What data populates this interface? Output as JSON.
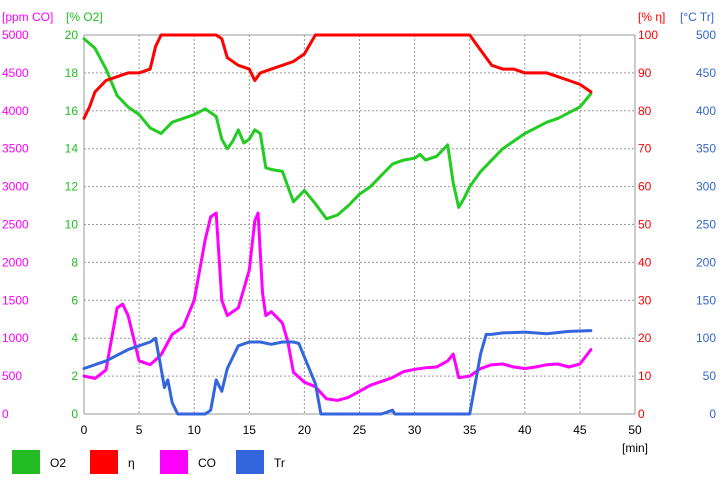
{
  "chart_data": {
    "type": "line",
    "x_axis": {
      "label": "[min]",
      "min": 0,
      "max": 50,
      "ticks": [
        0,
        5,
        10,
        15,
        20,
        25,
        30,
        35,
        40,
        45,
        50
      ]
    },
    "axes": [
      {
        "id": "co",
        "unit": "[ppm CO]",
        "color": "#ff00ff",
        "side": "left",
        "min": 0,
        "max": 5000,
        "ticks": [
          0,
          500,
          1000,
          1500,
          2000,
          2500,
          3000,
          3500,
          4000,
          4500,
          5000
        ]
      },
      {
        "id": "o2",
        "unit": "[% O2]",
        "color": "#22bb22",
        "side": "left",
        "min": 0,
        "max": 20,
        "ticks": [
          0,
          2,
          4,
          6,
          8,
          10,
          12,
          14,
          16,
          18,
          20
        ]
      },
      {
        "id": "eta",
        "unit": "[% η]",
        "color": "#ff0000",
        "side": "right",
        "min": 0,
        "max": 100,
        "ticks": [
          0,
          10,
          20,
          30,
          40,
          50,
          60,
          70,
          80,
          90,
          100
        ]
      },
      {
        "id": "tr",
        "unit": "[°C Tr]",
        "color": "#3366cc",
        "side": "right",
        "min": 0,
        "max": 500,
        "ticks": [
          0,
          50,
          100,
          150,
          200,
          250,
          300,
          350,
          400,
          450,
          500
        ]
      }
    ],
    "grid": true,
    "legend_position": "bottom",
    "series": [
      {
        "name": "O2",
        "axis": "o2",
        "color": "#22cc22",
        "x": [
          0,
          1,
          2,
          3,
          4,
          5,
          6,
          7,
          8,
          9,
          10,
          11,
          12,
          12.5,
          13,
          13.5,
          14,
          14.5,
          15,
          15.5,
          16,
          16.5,
          17,
          18,
          19,
          19.5,
          20,
          21,
          22,
          23,
          24,
          25,
          26,
          27,
          28,
          29,
          30,
          30.5,
          31,
          32,
          33,
          33.5,
          34,
          34.5,
          35,
          36,
          37,
          38,
          39,
          40,
          41,
          42,
          43,
          44,
          45,
          46
        ],
        "y": [
          19.8,
          19.3,
          18.2,
          16.8,
          16.2,
          15.8,
          15.1,
          14.8,
          15.4,
          15.6,
          15.8,
          16.1,
          15.7,
          14.5,
          14,
          14.4,
          15,
          14.3,
          14.5,
          15,
          14.8,
          13,
          12.9,
          12.8,
          11.2,
          11.5,
          11.8,
          11.1,
          10.3,
          10.5,
          11,
          11.6,
          12,
          12.6,
          13.2,
          13.4,
          13.5,
          13.7,
          13.4,
          13.6,
          14.2,
          12.2,
          10.9,
          11.4,
          12,
          12.8,
          13.4,
          14,
          14.4,
          14.8,
          15.1,
          15.4,
          15.6,
          15.9,
          16.2,
          16.9
        ]
      },
      {
        "name": "η",
        "axis": "eta",
        "color": "#ff0000",
        "x": [
          0,
          0.5,
          1,
          2,
          3,
          4,
          5,
          6,
          6.5,
          7,
          12,
          12.5,
          13,
          14,
          15,
          15.5,
          16,
          17,
          18,
          19,
          20,
          21,
          35,
          36,
          37,
          38,
          39,
          40,
          41,
          42,
          43,
          44,
          45,
          46
        ],
        "y": [
          78,
          81,
          85,
          88,
          89,
          90,
          90,
          91,
          97,
          100,
          100,
          99,
          94,
          92,
          91,
          88,
          90,
          91,
          92,
          93,
          95,
          100,
          100,
          96,
          92,
          91,
          91,
          90,
          90,
          90,
          89,
          88,
          87,
          85
        ]
      },
      {
        "name": "CO",
        "axis": "co",
        "color": "#ff00ff",
        "x": [
          0,
          1,
          2,
          3,
          3.5,
          4,
          5,
          6,
          7,
          8,
          9,
          10,
          11,
          11.5,
          12,
          12.5,
          13,
          14,
          15,
          15.5,
          15.8,
          16.2,
          16.5,
          17,
          18,
          18.5,
          19,
          20,
          21,
          22,
          23,
          24,
          25,
          26,
          27,
          28,
          29,
          30,
          31,
          32,
          33,
          33.5,
          34,
          35,
          36,
          37,
          38,
          39,
          40,
          41,
          42,
          43,
          44,
          45,
          46
        ],
        "y": [
          500,
          470,
          580,
          1400,
          1450,
          1300,
          700,
          650,
          780,
          1050,
          1150,
          1500,
          2300,
          2600,
          2650,
          1500,
          1300,
          1400,
          1900,
          2550,
          2650,
          1600,
          1300,
          1350,
          1200,
          950,
          550,
          420,
          360,
          200,
          180,
          220,
          300,
          380,
          430,
          480,
          560,
          590,
          610,
          620,
          700,
          790,
          480,
          500,
          600,
          650,
          660,
          620,
          600,
          620,
          650,
          660,
          620,
          660,
          850
        ]
      },
      {
        "name": "Tr",
        "axis": "tr",
        "color": "#3366dd",
        "x": [
          0,
          2,
          4,
          6,
          6.5,
          7,
          7.3,
          7.6,
          8,
          8.5,
          11,
          11.5,
          12,
          12.5,
          13,
          13.5,
          14,
          15,
          16,
          17,
          18,
          19,
          19.5,
          20,
          21,
          21.5,
          27,
          28,
          28.2,
          35,
          35.5,
          36,
          36.5,
          37,
          38,
          40,
          42,
          44,
          46
        ],
        "y": [
          60,
          70,
          85,
          95,
          100,
          60,
          35,
          45,
          15,
          0,
          0,
          5,
          45,
          30,
          60,
          75,
          90,
          95,
          95,
          92,
          95,
          95,
          93,
          75,
          40,
          0,
          0,
          5,
          0,
          0,
          40,
          80,
          105,
          105,
          107,
          108,
          106,
          109,
          110
        ]
      }
    ]
  },
  "legend": {
    "items": [
      {
        "label": "O2",
        "color": "#22bb22"
      },
      {
        "label": "η",
        "color": "#ff0000"
      },
      {
        "label": "CO",
        "color": "#ff00ff"
      },
      {
        "label": "Tr",
        "color": "#3366dd"
      }
    ]
  }
}
